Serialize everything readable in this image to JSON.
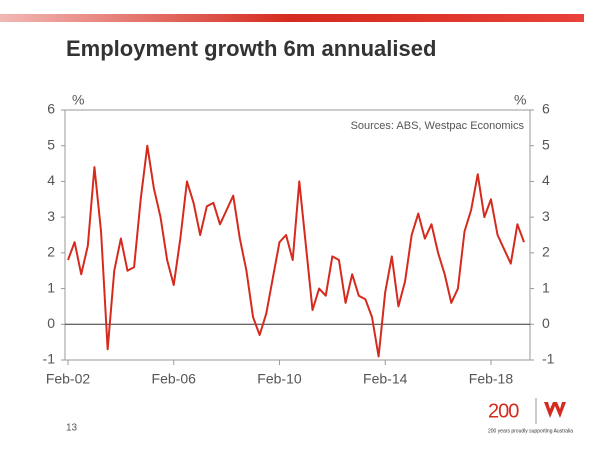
{
  "chart_data": {
    "type": "line",
    "title": "Employment growth 6m annualised",
    "y_label": "%",
    "y2_label": "%",
    "annotation": "Sources: ABS, Westpac Economics",
    "categories": [
      "Feb-02",
      null,
      null,
      null,
      null,
      null,
      null,
      null,
      null,
      null,
      null,
      null,
      null,
      null,
      null,
      null,
      "Feb-06",
      null,
      null,
      null,
      null,
      null,
      null,
      null,
      null,
      null,
      null,
      null,
      null,
      null,
      null,
      null,
      "Feb-10",
      null,
      null,
      null,
      null,
      null,
      null,
      null,
      null,
      null,
      null,
      null,
      null,
      null,
      null,
      null,
      "Feb-14",
      null,
      null,
      null,
      null,
      null,
      null,
      null,
      null,
      null,
      null,
      null,
      null,
      null,
      null,
      null,
      "Feb-18",
      null,
      null,
      null,
      null,
      null
    ],
    "series": [
      {
        "color": "#d52b1e",
        "values": [
          1.8,
          2.3,
          1.4,
          2.2,
          4.4,
          2.6,
          -0.7,
          1.5,
          2.4,
          1.5,
          1.6,
          3.5,
          5.0,
          3.8,
          3.0,
          1.8,
          1.1,
          2.4,
          4.0,
          3.4,
          2.5,
          3.3,
          3.4,
          2.8,
          3.2,
          3.6,
          2.4,
          1.5,
          0.2,
          -0.3,
          0.3,
          1.3,
          2.3,
          2.5,
          1.8,
          4.0,
          2.2,
          0.4,
          1.0,
          0.8,
          1.9,
          1.8,
          0.6,
          1.4,
          0.8,
          0.7,
          0.2,
          -0.9,
          0.9,
          1.9,
          0.5,
          1.2,
          2.5,
          3.1,
          2.4,
          2.8,
          2.0,
          1.4,
          0.6,
          1.0,
          2.6,
          3.2,
          4.2,
          3.0,
          3.5,
          2.5,
          2.1,
          1.7,
          2.8,
          2.3
        ]
      }
    ],
    "ylim": [
      -1,
      6
    ],
    "yticks": [
      -1,
      0,
      1,
      2,
      3,
      4,
      5,
      6
    ],
    "y2lim": [
      -1,
      6
    ],
    "y2ticks": [
      -1,
      0,
      1,
      2,
      3,
      4,
      5,
      6
    ]
  },
  "page_number": "13",
  "logo": {
    "number": "200",
    "tagline": "200 years proudly supporting Australia"
  }
}
